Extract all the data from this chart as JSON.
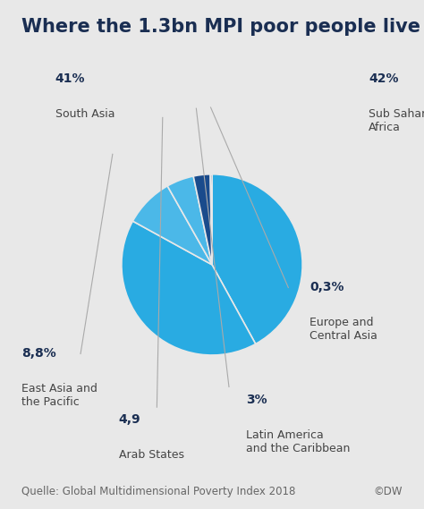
{
  "title": "Where the 1.3bn MPI poor people live",
  "slices": [
    {
      "label": "Sub Saharan\nAfrica",
      "pct_label": "42%",
      "value": 42,
      "color": "#29ABE2"
    },
    {
      "label": "South Asia",
      "pct_label": "41%",
      "value": 41,
      "color": "#29ABE2"
    },
    {
      "label": "East Asia and\nthe Pacific",
      "pct_label": "8,8%",
      "value": 8.8,
      "color": "#4BB8E8"
    },
    {
      "label": "Arab States",
      "pct_label": "4,9",
      "value": 4.9,
      "color": "#4BB8E8"
    },
    {
      "label": "Latin America\nand the Caribbean",
      "pct_label": "3%",
      "value": 3,
      "color": "#1A4B8C"
    },
    {
      "label": "Europe and\nCentral Asia",
      "pct_label": "0,3%",
      "value": 0.3,
      "color": "#1A4B8C"
    }
  ],
  "footer_left": "Quelle: Global Multidimensional Poverty Index 2018",
  "footer_right": "©DW",
  "bg_color": "#E8E8E8",
  "title_color": "#1a2e52",
  "label_color": "#444444",
  "pct_color": "#1a2e52",
  "title_fontsize": 15,
  "footer_fontsize": 8.5,
  "label_fontsize": 9,
  "pct_fontsize": 10
}
